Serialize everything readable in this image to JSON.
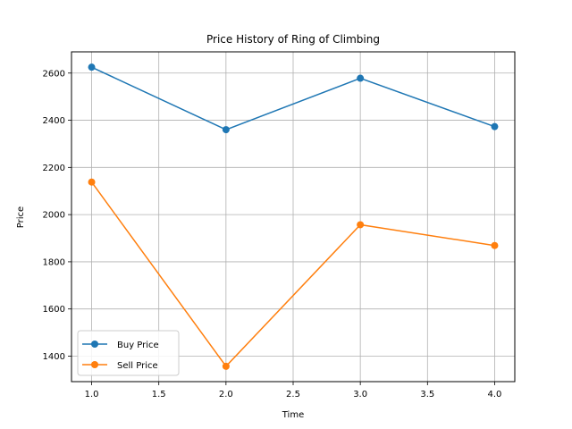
{
  "chart_data": {
    "type": "line",
    "title": "Price History of Ring of Climbing",
    "xlabel": "Time",
    "ylabel": "Price",
    "x": [
      1.0,
      2.0,
      3.0,
      4.0
    ],
    "xlim": [
      0.85,
      4.15
    ],
    "ylim": [
      1292,
      2690
    ],
    "xticks": [
      "1.0",
      "1.5",
      "2.0",
      "2.5",
      "3.0",
      "3.5",
      "4.0"
    ],
    "yticks": [
      "1400",
      "1600",
      "1800",
      "2000",
      "2200",
      "2400",
      "2600"
    ],
    "grid": true,
    "legend_position": "lower-left",
    "series": [
      {
        "name": "Buy Price",
        "color": "#1f77b4",
        "marker": "circle",
        "values": [
          2625,
          2360,
          2578,
          2373
        ]
      },
      {
        "name": "Sell Price",
        "color": "#ff7f0e",
        "marker": "circle",
        "values": [
          2138,
          1357,
          1957,
          1869
        ]
      }
    ]
  }
}
